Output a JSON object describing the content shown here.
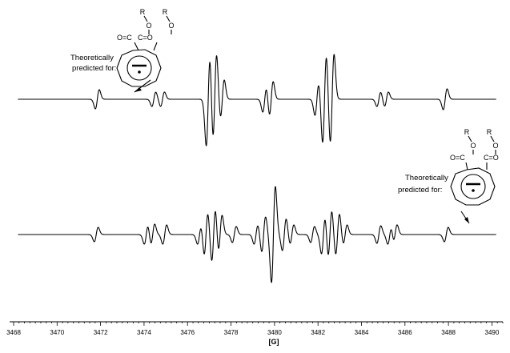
{
  "chart_data": {
    "type": "line",
    "xlabel": "[G]",
    "ylabel": "",
    "xlim": [
      3468,
      3490.5
    ],
    "x_ticks": [
      "3468",
      "3470",
      "3472",
      "3474",
      "3476",
      "3478",
      "3480",
      "3482",
      "3484",
      "3486",
      "3488",
      "3490"
    ],
    "grid": false,
    "series": [
      {
        "lines": [
          {
            "x": 3471.85,
            "amp": 12
          },
          {
            "x": 3474.45,
            "amp": 9
          },
          {
            "x": 3474.85,
            "amp": 9
          },
          {
            "x": 3476.95,
            "amp": 58
          },
          {
            "x": 3477.25,
            "amp": 56
          },
          {
            "x": 3477.6,
            "amp": 24
          },
          {
            "x": 3479.55,
            "amp": 16
          },
          {
            "x": 3479.85,
            "amp": 22
          },
          {
            "x": 3481.95,
            "amp": 20
          },
          {
            "x": 3482.3,
            "amp": 55
          },
          {
            "x": 3482.65,
            "amp": 56
          },
          {
            "x": 3484.8,
            "amp": 9
          },
          {
            "x": 3485.15,
            "amp": 9
          },
          {
            "x": 3487.85,
            "amp": 13
          }
        ]
      },
      {
        "lines": [
          {
            "x": 3471.8,
            "amp": 9
          },
          {
            "x": 3474.1,
            "amp": 12
          },
          {
            "x": 3474.4,
            "amp": 13
          },
          {
            "x": 3474.95,
            "amp": 12
          },
          {
            "x": 3476.55,
            "amp": 12
          },
          {
            "x": 3476.85,
            "amp": 27
          },
          {
            "x": 3477.2,
            "amp": 34
          },
          {
            "x": 3477.5,
            "amp": 24
          },
          {
            "x": 3478.15,
            "amp": 10
          },
          {
            "x": 3479.15,
            "amp": 12
          },
          {
            "x": 3479.5,
            "amp": 22
          },
          {
            "x": 3479.95,
            "amp": 60
          },
          {
            "x": 3480.45,
            "amp": 20
          },
          {
            "x": 3480.8,
            "amp": 12
          },
          {
            "x": 3481.75,
            "amp": 10
          },
          {
            "x": 3482.25,
            "amp": 24
          },
          {
            "x": 3482.55,
            "amp": 30
          },
          {
            "x": 3482.9,
            "amp": 26
          },
          {
            "x": 3483.25,
            "amp": 12
          },
          {
            "x": 3484.8,
            "amp": 11
          },
          {
            "x": 3485.3,
            "amp": 12
          },
          {
            "x": 3485.55,
            "amp": 12
          },
          {
            "x": 3487.9,
            "amp": 9
          }
        ]
      }
    ],
    "annotations": [
      {
        "label": "Theoretically",
        "label2": "predicted for:",
        "substituent": "R",
        "oxygen": "O",
        "carbonyl": "O=C",
        "carbonyl_right": "C=O"
      },
      {
        "label": "Theoretically",
        "label2": "predicted for:",
        "substituent": "R",
        "oxygen": "O",
        "carbonyl": "O=C",
        "carbonyl_right": "C=O"
      }
    ]
  }
}
